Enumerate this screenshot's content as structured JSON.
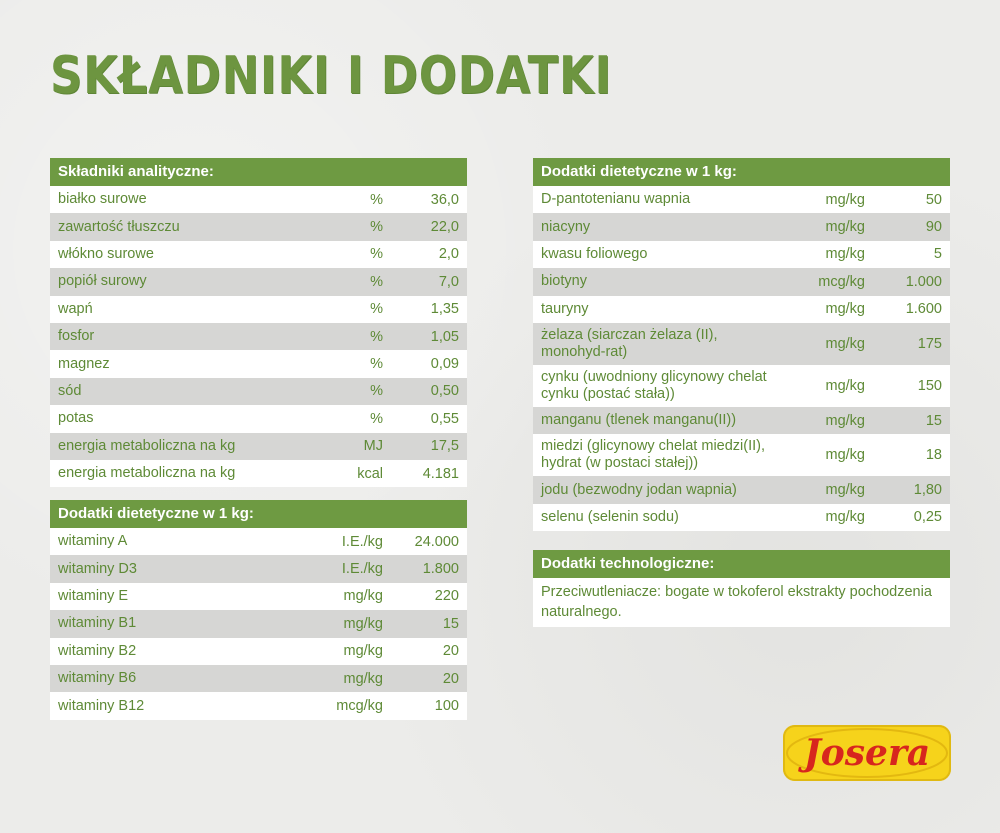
{
  "title": "SKŁADNIKI I DODATKI",
  "analytic": {
    "header": "Składniki analityczne:",
    "rows": [
      {
        "name": "białko surowe",
        "unit": "%",
        "value": "36,0"
      },
      {
        "name": "zawartość tłuszczu",
        "unit": "%",
        "value": "22,0"
      },
      {
        "name": "włókno surowe",
        "unit": "%",
        "value": "2,0"
      },
      {
        "name": "popiół surowy",
        "unit": "%",
        "value": "7,0"
      },
      {
        "name": "wapń",
        "unit": "%",
        "value": "1,35"
      },
      {
        "name": "fosfor",
        "unit": "%",
        "value": "1,05"
      },
      {
        "name": "magnez",
        "unit": "%",
        "value": "0,09"
      },
      {
        "name": "sód",
        "unit": "%",
        "value": "0,50"
      },
      {
        "name": "potas",
        "unit": "%",
        "value": "0,55"
      },
      {
        "name": "energia metaboliczna na kg",
        "unit": "MJ",
        "value": "17,5"
      },
      {
        "name": "energia metaboliczna na kg",
        "unit": "kcal",
        "value": "4.181"
      }
    ]
  },
  "vitamins": {
    "header": "Dodatki dietetyczne w 1 kg:",
    "rows": [
      {
        "name": "witaminy A",
        "unit": "I.E./kg",
        "value": "24.000"
      },
      {
        "name": "witaminy D3",
        "unit": "I.E./kg",
        "value": "1.800"
      },
      {
        "name": "witaminy E",
        "unit": "mg/kg",
        "value": "220"
      },
      {
        "name": "witaminy B1",
        "unit": "mg/kg",
        "value": "15"
      },
      {
        "name": "witaminy B2",
        "unit": "mg/kg",
        "value": "20"
      },
      {
        "name": "witaminy B6",
        "unit": "mg/kg",
        "value": "20"
      },
      {
        "name": "witaminy B12",
        "unit": "mcg/kg",
        "value": "100"
      }
    ]
  },
  "additives": {
    "header": "Dodatki dietetyczne w 1 kg:",
    "rows": [
      {
        "name": "D-pantotenianu wapnia",
        "unit": "mg/kg",
        "value": "50"
      },
      {
        "name": "niacyny",
        "unit": "mg/kg",
        "value": "90"
      },
      {
        "name": "kwasu foliowego",
        "unit": "mg/kg",
        "value": "5"
      },
      {
        "name": "biotyny",
        "unit": "mcg/kg",
        "value": "1.000"
      },
      {
        "name": "tauryny",
        "unit": "mg/kg",
        "value": "1.600"
      },
      {
        "name": "żelaza (siarczan żelaza (II), monohyd-rat)",
        "unit": "mg/kg",
        "value": "175"
      },
      {
        "name": "cynku (uwodniony glicynowy chelat cynku (postać stała))",
        "unit": "mg/kg",
        "value": "150"
      },
      {
        "name": "manganu (tlenek manganu(II))",
        "unit": "mg/kg",
        "value": "15"
      },
      {
        "name": "miedzi (glicynowy chelat miedzi(II), hydrat (w postaci stałej))",
        "unit": "mg/kg",
        "value": "18"
      },
      {
        "name": "jodu (bezwodny jodan wapnia)",
        "unit": "mg/kg",
        "value": "1,80"
      },
      {
        "name": "selenu (selenin sodu)",
        "unit": "mg/kg",
        "value": "0,25"
      }
    ]
  },
  "technological": {
    "header": "Dodatki technologiczne:",
    "text": "Przeciwutleniacze: bogate w tokoferol ekstrakty pochodzenia naturalnego."
  },
  "logo": {
    "text": "Josera"
  },
  "colors": {
    "accent": "#6e9a42",
    "text": "#5e8a36",
    "alt_row": "#d6d6d4",
    "logo_bg": "#f6d31b",
    "logo_text": "#d7261e"
  }
}
